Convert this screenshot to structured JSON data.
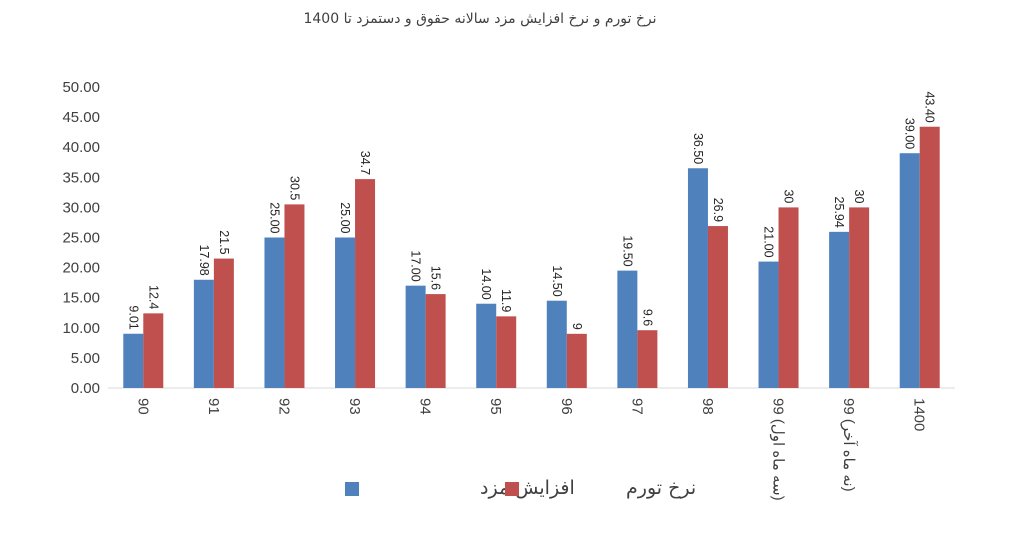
{
  "chart_data": {
    "type": "bar",
    "title": "نرخ تورم و نرخ افزایش مزد سالانه حقوق و دستمزد تا 1400",
    "xlabel": "",
    "ylabel": "",
    "categories": [
      "90",
      "91",
      "92",
      "93",
      "94",
      "95",
      "96",
      "97",
      "98",
      "99 (سه ماه اول)",
      "99 (نه ماه آخر)",
      "1400"
    ],
    "series": [
      {
        "name": "افزایش مزد",
        "color": "#4f81bd",
        "values": [
          9.01,
          17.98,
          25.0,
          25.0,
          17.0,
          14.0,
          14.5,
          19.5,
          36.5,
          21.0,
          25.94,
          39.0
        ],
        "labels": [
          "9.01",
          "17.98",
          "25.00",
          "25.00",
          "17.00",
          "14.00",
          "14.50",
          "19.50",
          "36.50",
          "21.00",
          "25.94",
          "39.00"
        ]
      },
      {
        "name": "نرخ تورم",
        "color": "#c0504d",
        "values": [
          12.4,
          21.5,
          30.5,
          34.7,
          15.6,
          11.9,
          9,
          9.6,
          26.9,
          30,
          30,
          43.4
        ],
        "labels": [
          "12.4",
          "21.5",
          "30.5",
          "34.7",
          "15.6",
          "11.9",
          "9",
          "9.6",
          "26.9",
          "30",
          "30",
          "43.40"
        ]
      }
    ],
    "ylim": [
      0,
      50
    ],
    "yticks": [
      "0.00",
      "5.00",
      "10.00",
      "15.00",
      "20.00",
      "25.00",
      "30.00",
      "35.00",
      "40.00",
      "45.00",
      "50.00"
    ],
    "grid": false,
    "legend_position": "bottom"
  }
}
